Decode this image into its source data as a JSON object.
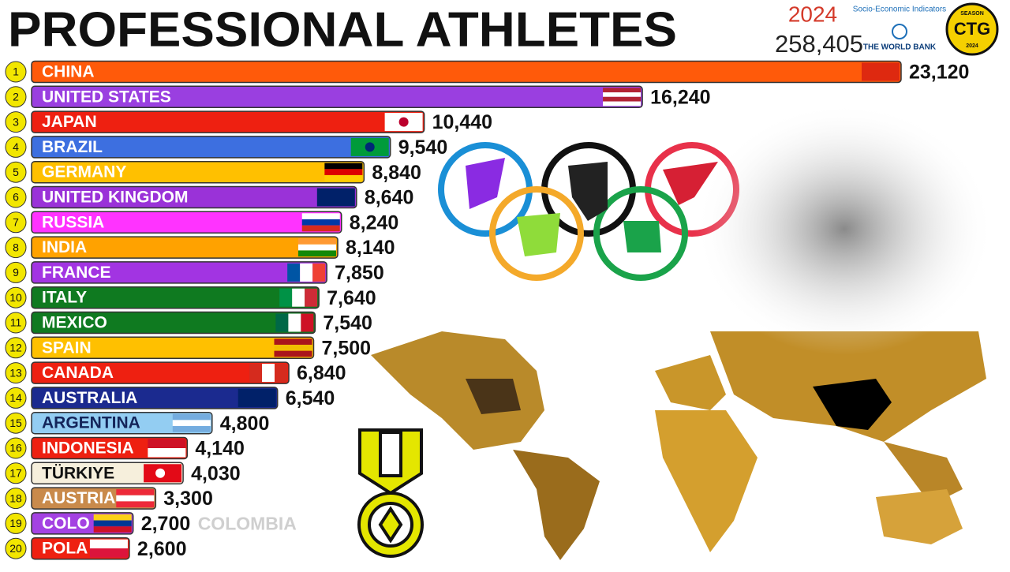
{
  "chart_data": {
    "type": "bar",
    "orientation": "horizontal",
    "title": "PROFESSIONAL ATHLETES",
    "year": 2024,
    "total": {
      "value": 258405,
      "label": "258,405"
    },
    "world_bank": {
      "tagline": "Socio-Economic Indicators",
      "name": "THE WORLD BANK"
    },
    "badge": {
      "top": "SEASON",
      "middle": "CTG",
      "bottom": "2024"
    },
    "ghost_label": "COLOMBIA",
    "ranks": [
      1,
      2,
      3,
      4,
      5,
      6,
      7,
      8,
      9,
      10,
      11,
      12,
      13,
      14,
      15,
      16,
      17,
      18,
      19,
      20
    ],
    "categories": [
      "CHINA",
      "UNITED STATES",
      "JAPAN",
      "BRAZIL",
      "GERMANY",
      "UNITED KINGDOM",
      "RUSSIA",
      "INDIA",
      "FRANCE",
      "ITALY",
      "MEXICO",
      "SPAIN",
      "CANADA",
      "AUSTRALIA",
      "ARGENTINA",
      "INDONESIA",
      "TÜRKIYE",
      "AUSTRIA",
      "COLO",
      "POLA"
    ],
    "values": [
      23120,
      16240,
      10440,
      9540,
      8840,
      8640,
      8240,
      8140,
      7850,
      7640,
      7540,
      7500,
      6840,
      6540,
      4800,
      4140,
      4030,
      3300,
      2700,
      2600
    ],
    "value_labels": [
      "23,120",
      "16,240",
      "10,440",
      "9,540",
      "8,840",
      "8,640",
      "8,240",
      "8,140",
      "7,850",
      "7,640",
      "7,540",
      "7,500",
      "6,840",
      "6,540",
      "4,800",
      "4,140",
      "4,030",
      "3,300",
      "2,700",
      "2,600"
    ],
    "colors": [
      "#ff5a0a",
      "#9a3fe0",
      "#ee2011",
      "#3d6fe0",
      "#ffc000",
      "#9a32d8",
      "#ff33ff",
      "#ffa200",
      "#a234e2",
      "#0f7a20",
      "#0f7a20",
      "#ffc000",
      "#ee2011",
      "#1b2a8f",
      "#93cdf2",
      "#ee2011",
      "#f6efdc",
      "#c98a4b",
      "#a442e2",
      "#ee2011"
    ]
  }
}
